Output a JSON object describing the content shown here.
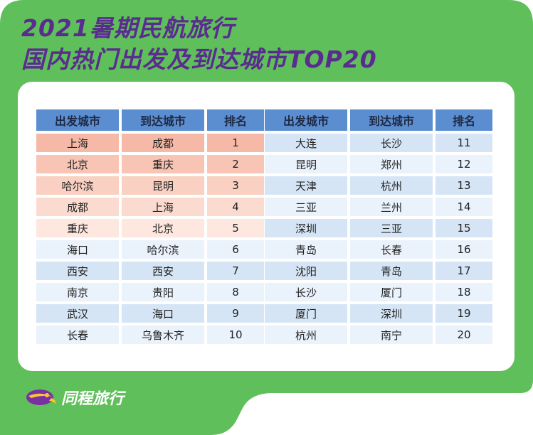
{
  "title_line1": "2021暑期民航旅行",
  "title_line2": "国内热门出发及到达城市TOP20",
  "headers": {
    "departure": "出发城市",
    "arrival": "到达城市",
    "rank": "排名"
  },
  "rows": [
    {
      "departure": "上海",
      "arrival": "成都",
      "rank": "1"
    },
    {
      "departure": "北京",
      "arrival": "重庆",
      "rank": "2"
    },
    {
      "departure": "哈尔滨",
      "arrival": "昆明",
      "rank": "3"
    },
    {
      "departure": "成都",
      "arrival": "上海",
      "rank": "4"
    },
    {
      "departure": "重庆",
      "arrival": "北京",
      "rank": "5"
    },
    {
      "departure": "海口",
      "arrival": "哈尔滨",
      "rank": "6"
    },
    {
      "departure": "西安",
      "arrival": "西安",
      "rank": "7"
    },
    {
      "departure": "南京",
      "arrival": "贵阳",
      "rank": "8"
    },
    {
      "departure": "武汉",
      "arrival": "海口",
      "rank": "9"
    },
    {
      "departure": "长春",
      "arrival": "乌鲁木齐",
      "rank": "10"
    },
    {
      "departure": "大连",
      "arrival": "长沙",
      "rank": "11"
    },
    {
      "departure": "昆明",
      "arrival": "郑州",
      "rank": "12"
    },
    {
      "departure": "天津",
      "arrival": "杭州",
      "rank": "13"
    },
    {
      "departure": "三亚",
      "arrival": "兰州",
      "rank": "14"
    },
    {
      "departure": "深圳",
      "arrival": "三亚",
      "rank": "15"
    },
    {
      "departure": "青岛",
      "arrival": "长春",
      "rank": "16"
    },
    {
      "departure": "沈阳",
      "arrival": "青岛",
      "rank": "17"
    },
    {
      "departure": "长沙",
      "arrival": "厦门",
      "rank": "18"
    },
    {
      "departure": "厦门",
      "arrival": "深圳",
      "rank": "19"
    },
    {
      "departure": "杭州",
      "arrival": "南宁",
      "rank": "20"
    }
  ],
  "brand": "同程旅行",
  "colors": {
    "background_green": "#5fbf5a",
    "title_purple": "#5a2c8f",
    "header_blue": "#5b8ed0",
    "row_light": "#eaf2fb",
    "row_dark": "#d6e5f5",
    "top_pink": [
      "#f6b9a7",
      "#f8c5b5",
      "#f9d0c2",
      "#fbdbd0",
      "#fde7df"
    ],
    "logo_yellow": "#f7c631"
  }
}
